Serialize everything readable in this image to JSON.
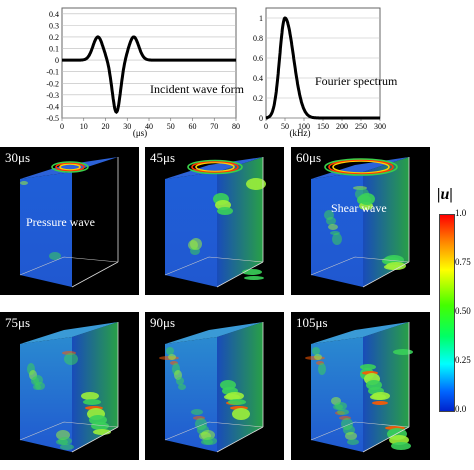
{
  "waveform": {
    "label": "Incident wave form",
    "y_ticks": [
      "0.4",
      "0.3",
      "0.2",
      "0.1",
      "0",
      "-0.1",
      "-0.2",
      "-0.3",
      "-0.4",
      "-0.5"
    ],
    "x_ticks": [
      "0",
      "10",
      "20",
      "30",
      "40",
      "50",
      "60",
      "70",
      "80"
    ],
    "x_unit": "(μs)"
  },
  "spectrum": {
    "label": "Fourier spectrum",
    "y_ticks": [
      "1",
      "0.8",
      "0.6",
      "0.4",
      "0.2",
      "0"
    ],
    "x_ticks": [
      "0",
      "50",
      "100",
      "150",
      "200",
      "250",
      "300"
    ],
    "x_unit": "(kHz)"
  },
  "panels": [
    {
      "time": "30μs",
      "annotation": "Pressure wave"
    },
    {
      "time": "45μs",
      "annotation": ""
    },
    {
      "time": "60μs",
      "annotation": "Shear wave"
    },
    {
      "time": "75μs",
      "annotation": ""
    },
    {
      "time": "90μs",
      "annotation": ""
    },
    {
      "time": "105μs",
      "annotation": ""
    }
  ],
  "colorbar": {
    "title": "|u|",
    "ticks": [
      "1.0",
      "0.75",
      "0.50",
      "0.25",
      "0.0"
    ],
    "gradient": [
      "#ff0000",
      "#ff8800",
      "#ffff00",
      "#00ff00",
      "#00ffff",
      "#0044ff"
    ]
  },
  "chart_data": [
    {
      "type": "line",
      "title": "Incident wave form",
      "xlabel": "(μs)",
      "ylabel": "",
      "xlim": [
        0,
        80
      ],
      "ylim": [
        -0.5,
        0.45
      ],
      "x": [
        0,
        10,
        12,
        14,
        16,
        18,
        20,
        22,
        24,
        25,
        26,
        28,
        30,
        32,
        34,
        36,
        38,
        40,
        50,
        60,
        70,
        80
      ],
      "y": [
        0,
        0,
        0.04,
        0.12,
        0.18,
        0.2,
        0.1,
        -0.2,
        -0.42,
        -0.45,
        -0.42,
        -0.18,
        0.1,
        0.2,
        0.17,
        0.1,
        0.04,
        0.01,
        0,
        0,
        0,
        0
      ]
    },
    {
      "type": "line",
      "title": "Fourier spectrum",
      "xlabel": "(kHz)",
      "ylabel": "",
      "xlim": [
        0,
        300
      ],
      "ylim": [
        0,
        1.1
      ],
      "x": [
        0,
        10,
        20,
        30,
        40,
        50,
        60,
        70,
        80,
        90,
        100,
        120,
        140,
        160,
        200,
        250,
        300
      ],
      "y": [
        0,
        0.03,
        0.22,
        0.6,
        0.92,
        1.0,
        0.88,
        0.62,
        0.38,
        0.2,
        0.1,
        0.02,
        0.005,
        0,
        0,
        0,
        0
      ]
    }
  ]
}
